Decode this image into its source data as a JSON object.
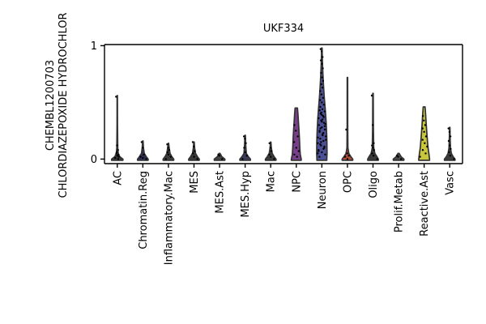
{
  "chart_data": {
    "type": "violin",
    "title": "UKF334",
    "ylabel_lines": [
      "CHEMBL1200703",
      "CHLORDIAZEPOXIDE HYDROCHLOR"
    ],
    "xlabel": "",
    "ylim": [
      -0.04,
      1.01
    ],
    "yticks": [
      0,
      1
    ],
    "categories": [
      "AC",
      "Chromatin.Reg",
      "Inflammatory.Mac",
      "MES",
      "MES.Ast",
      "MES.Hyp",
      "Mac",
      "NPC",
      "Neuron",
      "OPC",
      "Oligo",
      "Prolif.Metab",
      "Reactive.Ast",
      "Vasc"
    ],
    "colors": {
      "AC": "#3a3a3a",
      "Chromatin.Reg": "#2c2c55",
      "Inflammatory.Mac": "#3c3c3c",
      "MES": "#3a3a3a",
      "MES.Ast": "#444444",
      "MES.Hyp": "#3a3a5a",
      "Mac": "#3a3a3a",
      "NPC": "#7a3f8c",
      "Neuron": "#4b4f96",
      "OPC": "#b04b38",
      "Oligo": "#3a3a3a",
      "Prolif.Metab": "#4a4a4a",
      "Reactive.Ast": "#c8c63a",
      "Vasc": "#3a3a3a"
    },
    "series": [
      {
        "name": "AC",
        "max": 0.56,
        "shape": [
          [
            0,
            0.48
          ],
          [
            0.02,
            0.22
          ],
          [
            0.05,
            0.08
          ],
          [
            0.1,
            0.04
          ],
          [
            0.3,
            0.02
          ],
          [
            0.56,
            0.015
          ]
        ]
      },
      {
        "name": "Chromatin.Reg",
        "max": 0.16,
        "shape": [
          [
            0,
            0.45
          ],
          [
            0.02,
            0.3
          ],
          [
            0.05,
            0.12
          ],
          [
            0.1,
            0.05
          ],
          [
            0.16,
            0.02
          ]
        ]
      },
      {
        "name": "Inflammatory.Mac",
        "max": 0.14,
        "shape": [
          [
            0,
            0.45
          ],
          [
            0.02,
            0.3
          ],
          [
            0.05,
            0.14
          ],
          [
            0.1,
            0.06
          ],
          [
            0.14,
            0.02
          ]
        ]
      },
      {
        "name": "MES",
        "max": 0.15,
        "shape": [
          [
            0,
            0.45
          ],
          [
            0.02,
            0.3
          ],
          [
            0.05,
            0.13
          ],
          [
            0.1,
            0.05
          ],
          [
            0.15,
            0.02
          ]
        ]
      },
      {
        "name": "MES.Ast",
        "max": 0.05,
        "shape": [
          [
            0,
            0.45
          ],
          [
            0.02,
            0.2
          ],
          [
            0.05,
            0.04
          ]
        ]
      },
      {
        "name": "MES.Hyp",
        "max": 0.21,
        "shape": [
          [
            0,
            0.45
          ],
          [
            0.02,
            0.28
          ],
          [
            0.05,
            0.1
          ],
          [
            0.12,
            0.05
          ],
          [
            0.21,
            0.02
          ]
        ]
      },
      {
        "name": "Mac",
        "max": 0.15,
        "shape": [
          [
            0,
            0.45
          ],
          [
            0.02,
            0.3
          ],
          [
            0.05,
            0.13
          ],
          [
            0.1,
            0.05
          ],
          [
            0.15,
            0.02
          ]
        ]
      },
      {
        "name": "NPC",
        "max": 0.45,
        "shape": [
          [
            0,
            0.42
          ],
          [
            0.04,
            0.34
          ],
          [
            0.1,
            0.3
          ],
          [
            0.2,
            0.26
          ],
          [
            0.3,
            0.2
          ],
          [
            0.4,
            0.14
          ],
          [
            0.45,
            0.1
          ]
        ]
      },
      {
        "name": "Neuron",
        "max": 0.98,
        "shape": [
          [
            0,
            0.42
          ],
          [
            0.05,
            0.44
          ],
          [
            0.15,
            0.43
          ],
          [
            0.25,
            0.4
          ],
          [
            0.35,
            0.35
          ],
          [
            0.45,
            0.28
          ],
          [
            0.55,
            0.2
          ],
          [
            0.65,
            0.14
          ],
          [
            0.75,
            0.09
          ],
          [
            0.85,
            0.05
          ],
          [
            0.98,
            0.02
          ]
        ]
      },
      {
        "name": "OPC",
        "max": 0.72,
        "shape": [
          [
            0,
            0.45
          ],
          [
            0.02,
            0.3
          ],
          [
            0.05,
            0.12
          ],
          [
            0.1,
            0.04
          ],
          [
            0.3,
            0.025
          ],
          [
            0.72,
            0.02
          ]
        ]
      },
      {
        "name": "Oligo",
        "max": 0.58,
        "shape": [
          [
            0,
            0.45
          ],
          [
            0.02,
            0.34
          ],
          [
            0.05,
            0.16
          ],
          [
            0.1,
            0.06
          ],
          [
            0.3,
            0.03
          ],
          [
            0.58,
            0.02
          ]
        ]
      },
      {
        "name": "Prolif.Metab",
        "max": 0.05,
        "shape": [
          [
            0,
            0.45
          ],
          [
            0.02,
            0.22
          ],
          [
            0.05,
            0.05
          ]
        ]
      },
      {
        "name": "Reactive.Ast",
        "max": 0.46,
        "shape": [
          [
            0,
            0.46
          ],
          [
            0.05,
            0.4
          ],
          [
            0.1,
            0.33
          ],
          [
            0.2,
            0.25
          ],
          [
            0.3,
            0.18
          ],
          [
            0.4,
            0.12
          ],
          [
            0.46,
            0.08
          ]
        ]
      },
      {
        "name": "Vasc",
        "max": 0.28,
        "shape": [
          [
            0,
            0.45
          ],
          [
            0.02,
            0.3
          ],
          [
            0.05,
            0.14
          ],
          [
            0.1,
            0.06
          ],
          [
            0.2,
            0.03
          ],
          [
            0.28,
            0.02
          ]
        ]
      }
    ],
    "points": {
      "AC": [
        0.55,
        0.12,
        0.08,
        0.05,
        0.03,
        0.02,
        0.01,
        0.0,
        0.04,
        0.06
      ],
      "Chromatin.Reg": [
        0.15,
        0.1,
        0.04,
        0.02,
        0.01,
        0.0
      ],
      "Inflammatory.Mac": [
        0.13,
        0.1,
        0.08,
        0.06,
        0.04,
        0.02,
        0.0
      ],
      "MES": [
        0.15,
        0.11,
        0.07,
        0.05,
        0.02,
        0.0
      ],
      "MES.Ast": [
        0.04,
        0.03,
        0.0
      ],
      "MES.Hyp": [
        0.2,
        0.18,
        0.14,
        0.1,
        0.06,
        0.03,
        0.0
      ],
      "Mac": [
        0.14,
        0.1,
        0.07,
        0.04,
        0.02,
        0.0
      ],
      "NPC": [
        0.3,
        0.25,
        0.2,
        0.15,
        0.1,
        0.07,
        0.04,
        0.02
      ],
      "Neuron": [
        0.97,
        0.95,
        0.9,
        0.87,
        0.84,
        0.8,
        0.76,
        0.72,
        0.69,
        0.66,
        0.63,
        0.6,
        0.57,
        0.54,
        0.52,
        0.5,
        0.48,
        0.46,
        0.44,
        0.42,
        0.4,
        0.38,
        0.36,
        0.34,
        0.32,
        0.3,
        0.28,
        0.26,
        0.24,
        0.22,
        0.2,
        0.18,
        0.16,
        0.14,
        0.12,
        0.1,
        0.08,
        0.06,
        0.04,
        0.02,
        0.35,
        0.31,
        0.27,
        0.23,
        0.19,
        0.15,
        0.11,
        0.07,
        0.33,
        0.29,
        0.25,
        0.21,
        0.17,
        0.13,
        0.09,
        0.05,
        0.41,
        0.37,
        0.43,
        0.39
      ],
      "OPC": [
        0.26,
        0.05,
        0.03,
        0.02,
        0.0
      ],
      "Oligo": [
        0.56,
        0.3,
        0.14,
        0.12,
        0.1,
        0.08,
        0.05,
        0.03,
        0.0
      ],
      "Prolif.Metab": [
        0.03,
        0.02,
        0.0
      ],
      "Reactive.Ast": [
        0.38,
        0.34,
        0.3,
        0.27,
        0.24,
        0.2,
        0.17,
        0.14,
        0.11,
        0.08,
        0.05,
        0.02
      ],
      "Vasc": [
        0.27,
        0.24,
        0.2,
        0.16,
        0.12,
        0.09,
        0.06,
        0.03,
        0.0
      ]
    }
  }
}
